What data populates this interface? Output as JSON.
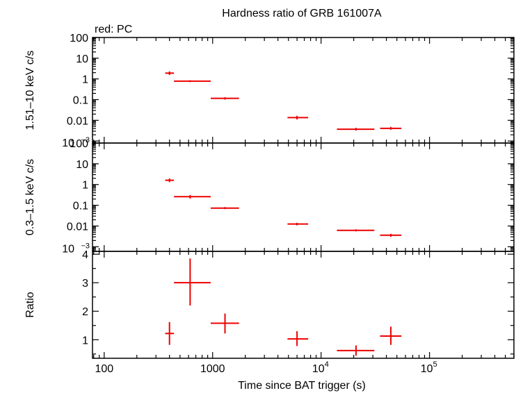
{
  "title": "Hardness ratio of GRB 161007A",
  "legend_label": "red: PC",
  "xlabel": "Time since BAT trigger (s)",
  "colors": {
    "data": "#ee0000",
    "axes": "#000000"
  },
  "chart_data": [
    {
      "type": "scatter",
      "panel": "hard",
      "ylabel": "1.51–10 keV c/s",
      "yscale": "log",
      "ylim": [
        0.0008,
        100
      ],
      "xscale": "log",
      "xlim": [
        78,
        600000
      ],
      "x_ticks": [
        {
          "value": 100,
          "label": "100"
        },
        {
          "value": 1000,
          "label": "1000"
        },
        {
          "value": 10000,
          "label": "10",
          "sup": "4"
        },
        {
          "value": 100000,
          "label": "10",
          "sup": "5"
        }
      ],
      "y_ticks": [
        {
          "value": 100,
          "label": "100"
        },
        {
          "value": 10,
          "label": "10"
        },
        {
          "value": 1,
          "label": "1"
        },
        {
          "value": 0.1,
          "label": "0.1"
        },
        {
          "value": 0.01,
          "label": "0.01"
        },
        {
          "value": 0.001,
          "label": "10",
          "sup": "−3"
        }
      ],
      "points": [
        {
          "x": 400,
          "xlo": 365,
          "xhi": 440,
          "y": 1.9,
          "ylo": 1.55,
          "yhi": 2.3
        },
        {
          "x": 620,
          "xlo": 440,
          "xhi": 960,
          "y": 0.78,
          "ylo": 0.7,
          "yhi": 0.86
        },
        {
          "x": 1300,
          "xlo": 960,
          "xhi": 1750,
          "y": 0.115,
          "ylo": 0.1,
          "yhi": 0.13
        },
        {
          "x": 6000,
          "xlo": 4900,
          "xhi": 7600,
          "y": 0.0135,
          "ylo": 0.011,
          "yhi": 0.0165
        },
        {
          "x": 21000,
          "xlo": 14000,
          "xhi": 31000,
          "y": 0.0037,
          "ylo": 0.0032,
          "yhi": 0.0043
        },
        {
          "x": 44000,
          "xlo": 35000,
          "xhi": 55000,
          "y": 0.0041,
          "ylo": 0.0035,
          "yhi": 0.0048
        }
      ]
    },
    {
      "type": "scatter",
      "panel": "soft",
      "ylabel": "0.3–1.5 keV c/s",
      "yscale": "log",
      "ylim": [
        0.0006,
        100
      ],
      "xscale": "log",
      "xlim": [
        78,
        600000
      ],
      "y_ticks": [
        {
          "value": 100,
          "label": "100"
        },
        {
          "value": 10,
          "label": "10"
        },
        {
          "value": 1,
          "label": "1"
        },
        {
          "value": 0.1,
          "label": "0.1"
        },
        {
          "value": 0.01,
          "label": "0.01"
        },
        {
          "value": 0.001,
          "label": "10",
          "sup": "−3"
        }
      ],
      "points": [
        {
          "x": 400,
          "xlo": 365,
          "xhi": 440,
          "y": 1.6,
          "ylo": 1.3,
          "yhi": 1.95
        },
        {
          "x": 620,
          "xlo": 440,
          "xhi": 960,
          "y": 0.26,
          "ylo": 0.21,
          "yhi": 0.31
        },
        {
          "x": 1300,
          "xlo": 960,
          "xhi": 1750,
          "y": 0.073,
          "ylo": 0.065,
          "yhi": 0.082
        },
        {
          "x": 6000,
          "xlo": 4900,
          "xhi": 7600,
          "y": 0.0125,
          "ylo": 0.0108,
          "yhi": 0.0143
        },
        {
          "x": 21000,
          "xlo": 14000,
          "xhi": 31000,
          "y": 0.0062,
          "ylo": 0.0055,
          "yhi": 0.0069
        },
        {
          "x": 44000,
          "xlo": 35000,
          "xhi": 55000,
          "y": 0.0036,
          "ylo": 0.003,
          "yhi": 0.0042
        }
      ]
    },
    {
      "type": "scatter",
      "panel": "ratio",
      "ylabel": "Ratio",
      "yscale": "linear",
      "ylim": [
        0.35,
        4.1
      ],
      "xscale": "log",
      "xlim": [
        78,
        600000
      ],
      "y_ticks": [
        {
          "value": 1,
          "label": "1"
        },
        {
          "value": 2,
          "label": "2"
        },
        {
          "value": 3,
          "label": "3"
        },
        {
          "value": 4,
          "label": "4"
        }
      ],
      "points": [
        {
          "x": 400,
          "xlo": 365,
          "xhi": 440,
          "y": 1.22,
          "ylo": 0.82,
          "yhi": 1.62
        },
        {
          "x": 620,
          "xlo": 440,
          "xhi": 960,
          "y": 3.0,
          "ylo": 2.2,
          "yhi": 3.85
        },
        {
          "x": 1300,
          "xlo": 960,
          "xhi": 1750,
          "y": 1.58,
          "ylo": 1.22,
          "yhi": 1.92
        },
        {
          "x": 6000,
          "xlo": 4900,
          "xhi": 7600,
          "y": 1.03,
          "ylo": 0.78,
          "yhi": 1.3
        },
        {
          "x": 21000,
          "xlo": 14000,
          "xhi": 31000,
          "y": 0.62,
          "ylo": 0.44,
          "yhi": 0.8
        },
        {
          "x": 44000,
          "xlo": 35000,
          "xhi": 55000,
          "y": 1.13,
          "ylo": 0.82,
          "yhi": 1.46
        }
      ]
    }
  ]
}
